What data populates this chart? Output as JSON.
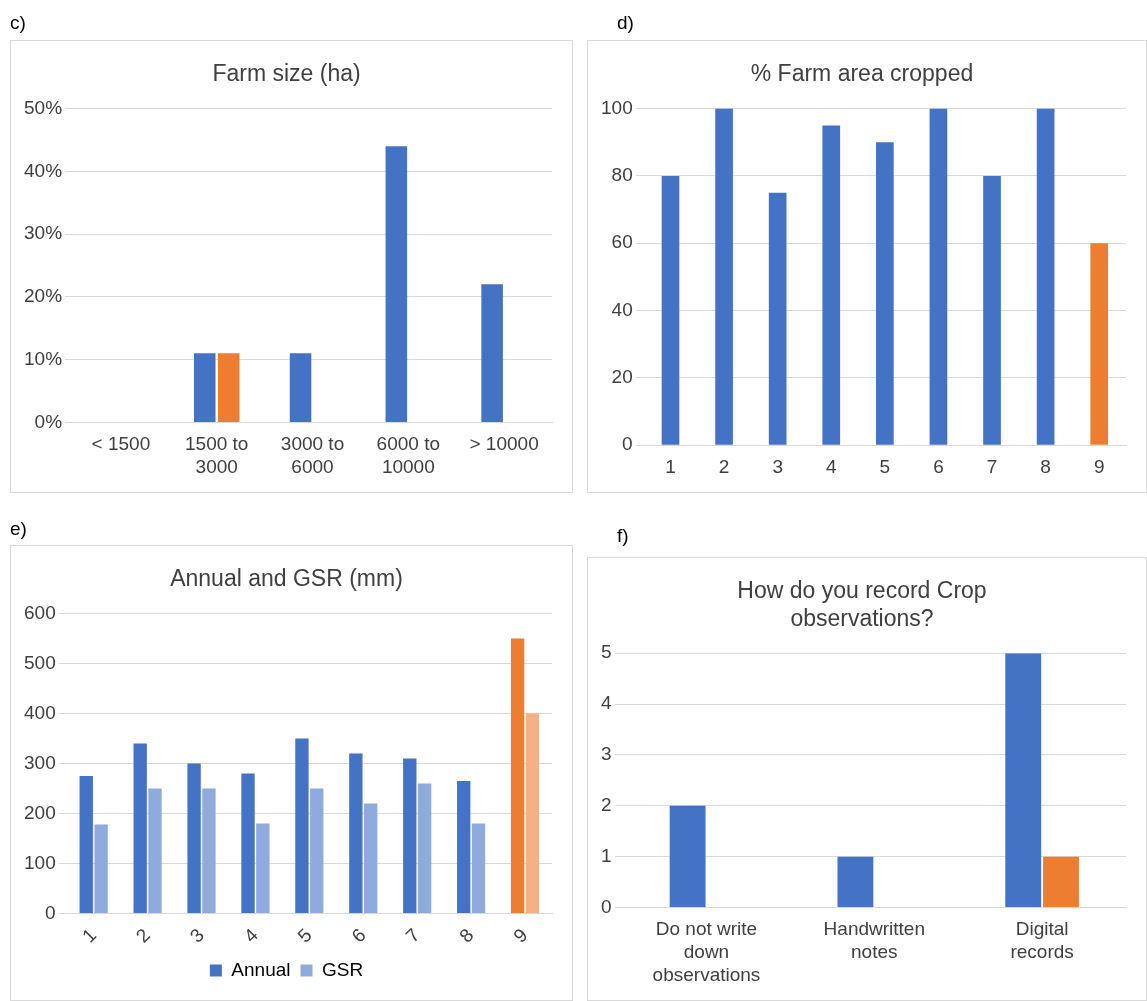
{
  "chart_data": [
    {
      "type": "bar",
      "title": "Farm size (ha)",
      "annotations": [
        "c)"
      ],
      "categories": [
        "< 1500",
        "1500 to 3000",
        "3000 to 6000",
        "6000 to 10000",
        "> 10000"
      ],
      "series": [
        {
          "color": "#4472c4",
          "values": [
            0,
            11,
            11,
            44,
            22
          ]
        },
        {
          "color": "#ed7d31",
          "values": [
            0,
            11,
            0,
            0,
            0
          ]
        }
      ],
      "ylim": [
        0,
        50
      ],
      "yticks": [
        {
          "value": 0,
          "label": "0%"
        },
        {
          "value": 10,
          "label": "10%"
        },
        {
          "value": 20,
          "label": "20%"
        },
        {
          "value": 30,
          "label": "30%"
        },
        {
          "value": 40,
          "label": "40%"
        },
        {
          "value": 50,
          "label": "50%"
        }
      ],
      "grid": "y"
    },
    {
      "type": "bar",
      "title": "% Farm area cropped",
      "annotations": [
        "d)"
      ],
      "categories": [
        "1",
        "2",
        "3",
        "4",
        "5",
        "6",
        "7",
        "8",
        "9"
      ],
      "series": [
        {
          "color": "#4472c4",
          "colors": [
            "#4472c4",
            "#4472c4",
            "#4472c4",
            "#4472c4",
            "#4472c4",
            "#4472c4",
            "#4472c4",
            "#4472c4",
            "#ed7d31"
          ],
          "values": [
            80,
            100,
            75,
            95,
            90,
            100,
            80,
            100,
            60
          ]
        }
      ],
      "ylim": [
        0,
        100
      ],
      "yticks": [
        0,
        20,
        40,
        60,
        80,
        100
      ],
      "grid": "y"
    },
    {
      "type": "bar",
      "title": "Annual and GSR (mm)",
      "annotations": [
        "e)"
      ],
      "categories": [
        "1",
        "2",
        "3",
        "4",
        "5",
        "6",
        "7",
        "8",
        "9"
      ],
      "series": [
        {
          "name": "Annual",
          "color": "#4472c4",
          "colors": [
            "#4472c4",
            "#4472c4",
            "#4472c4",
            "#4472c4",
            "#4472c4",
            "#4472c4",
            "#4472c4",
            "#4472c4",
            "#ed7d31"
          ],
          "values": [
            275,
            340,
            300,
            280,
            350,
            320,
            310,
            265,
            550
          ]
        },
        {
          "name": "GSR",
          "color": "#8faadc",
          "colors": [
            "#8faadc",
            "#8faadc",
            "#8faadc",
            "#8faadc",
            "#8faadc",
            "#8faadc",
            "#8faadc",
            "#8faadc",
            "#f4b183"
          ],
          "values": [
            178,
            250,
            250,
            180,
            250,
            220,
            260,
            180,
            400
          ]
        }
      ],
      "ylim": [
        0,
        600
      ],
      "yticks": [
        0,
        100,
        200,
        300,
        400,
        500,
        600
      ],
      "grid": "y",
      "legend": "bottom"
    },
    {
      "type": "bar",
      "title": "How do you record Crop observations?",
      "annotations": [
        "f)"
      ],
      "categories": [
        "Do not write down observations",
        "Handwritten notes",
        "Digital records"
      ],
      "series": [
        {
          "color": "#4472c4",
          "values": [
            2,
            1,
            5
          ]
        },
        {
          "color": "#ed7d31",
          "values": [
            0,
            0,
            1
          ]
        }
      ],
      "ylim": [
        0,
        5
      ],
      "yticks": [
        0,
        1,
        2,
        3,
        4,
        5
      ],
      "grid": "y"
    }
  ]
}
